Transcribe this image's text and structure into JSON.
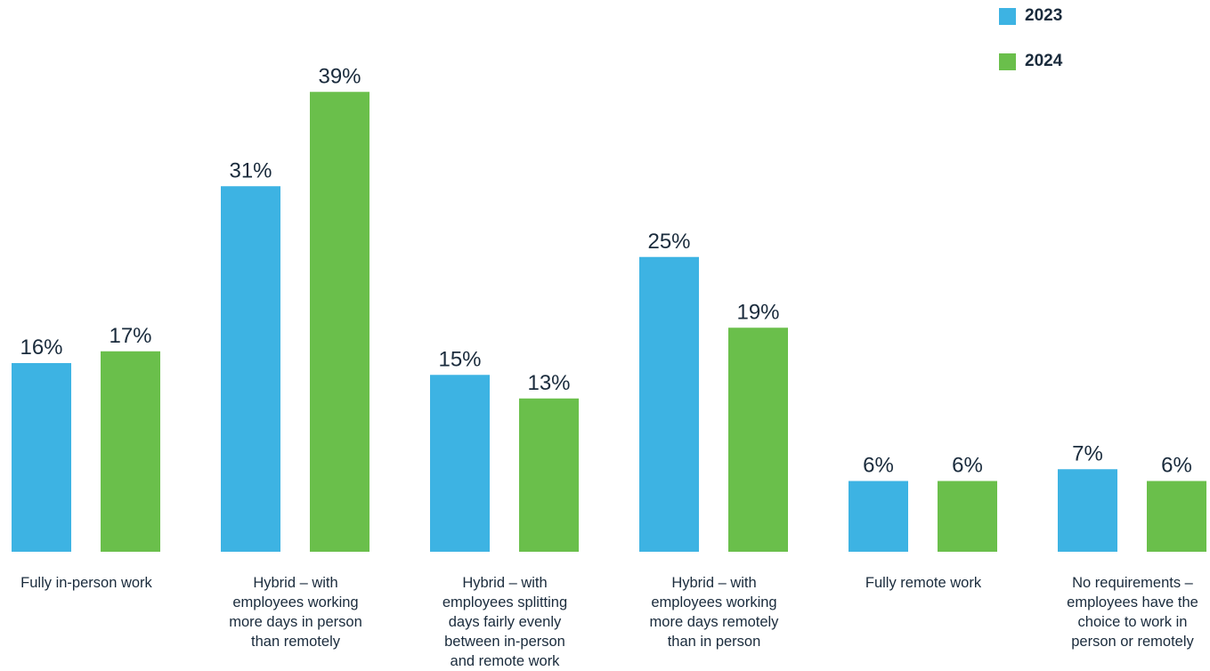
{
  "chart_data": {
    "type": "bar",
    "title": "",
    "xlabel": "",
    "ylabel": "",
    "categories": [
      [
        "Fully in-person work"
      ],
      [
        "Hybrid – with",
        "employees working",
        "more days in person",
        "than remotely"
      ],
      [
        "Hybrid – with",
        "employees splitting",
        "days fairly evenly",
        "between in-person",
        "and remote work"
      ],
      [
        "Hybrid – with",
        "employees working",
        "more days remotely",
        "than in person"
      ],
      [
        "Fully remote work"
      ],
      [
        "No requirements –",
        "employees have the",
        "choice to work in",
        "person or remotely"
      ]
    ],
    "series": [
      {
        "name": "2023",
        "color": "#3db3e3",
        "values": [
          16,
          31,
          15,
          25,
          6,
          7
        ],
        "labels": [
          "16%",
          "31%",
          "15%",
          "25%",
          "6%",
          "7%"
        ]
      },
      {
        "name": "2024",
        "color": "#6abf4b",
        "values": [
          17,
          39,
          13,
          19,
          6,
          6
        ],
        "labels": [
          "17%",
          "39%",
          "13%",
          "19%",
          "6%",
          "6%"
        ]
      }
    ],
    "ylim": [
      0,
      39
    ],
    "legend_position": "top-right",
    "grid": false
  }
}
